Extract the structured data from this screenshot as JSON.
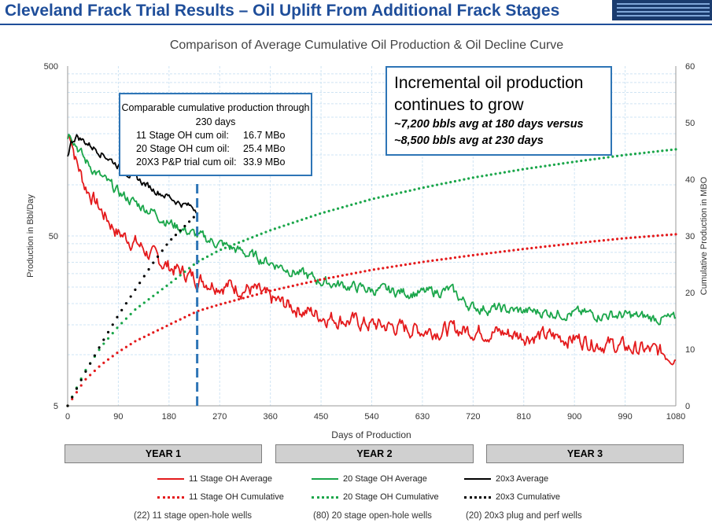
{
  "slide": {
    "title": "Cleveland Frack Trial Results – Oil Uplift From Additional Frack Stages"
  },
  "callout_left": {
    "header": "Comparable cumulative production through 230 days",
    "rows": [
      {
        "label": "11 Stage OH cum oil:",
        "value": "16.7 MBo"
      },
      {
        "label": "20 Stage OH cum oil:",
        "value": "25.4 MBo"
      },
      {
        "label": "20X3 P&P trial cum oil:",
        "value": "33.9 MBo"
      }
    ]
  },
  "callout_right": {
    "line1": "Incremental oil production",
    "line2": "continues to grow",
    "line3": "~7,200 bbls avg at 180 days versus",
    "line4": "~8,500 bbls avg at 230 days"
  },
  "years": [
    "YEAR 1",
    "YEAR 2",
    "YEAR 3"
  ],
  "legend": [
    {
      "label": "11 Stage OH Average",
      "color": "#e41a1c",
      "style": "solid"
    },
    {
      "label": "20 Stage OH Average",
      "color": "#1aa64a",
      "style": "solid"
    },
    {
      "label": "20x3 Average",
      "color": "#000000",
      "style": "solid"
    },
    {
      "label": "11 Stage OH Cumulative",
      "color": "#e41a1c",
      "style": "dotted"
    },
    {
      "label": "20 Stage OH Cumulative",
      "color": "#1aa64a",
      "style": "dotted"
    },
    {
      "label": "20x3 Cumulative",
      "color": "#000000",
      "style": "dotted"
    }
  ],
  "footer": [
    "(22) 11 stage open-hole wells",
    "(80) 20 stage open-hole wells",
    "(20) 20x3 plug and perf wells"
  ],
  "chart_data": {
    "type": "line",
    "title": "Comparison of Average Cumulative Oil Production & Oil Decline Curve",
    "xlabel": "Days of Production",
    "ylabel": "Production in Bbl/Day",
    "y2label": "Cumulative Production in MBO",
    "x_ticks": [
      "0",
      "90",
      "180",
      "270",
      "360",
      "450",
      "540",
      "630",
      "720",
      "810",
      "900",
      "990",
      "1080"
    ],
    "xlim": [
      0,
      1080
    ],
    "ylim": [
      5,
      500
    ],
    "y_scale": "log",
    "y_ticks": [
      "5",
      "50",
      "500"
    ],
    "y2lim": [
      0,
      60
    ],
    "y2_ticks": [
      "0",
      "10",
      "20",
      "30",
      "40",
      "50",
      "60"
    ],
    "grid": true,
    "marker_line": {
      "x": 230,
      "color": "#2e75b6",
      "style": "dashed"
    },
    "series": [
      {
        "name": "11 Stage OH Average",
        "axis": "left",
        "color": "#e41a1c",
        "style": "solid",
        "noise": 0.18,
        "x": [
          0,
          5,
          15,
          30,
          60,
          90,
          120,
          150,
          180,
          230,
          270,
          330,
          360,
          450,
          540,
          630,
          720,
          810,
          900,
          990,
          1080
        ],
        "y": [
          190,
          200,
          140,
          100,
          70,
          52,
          46,
          38,
          33,
          28,
          26,
          24,
          21,
          17,
          15,
          14,
          14,
          13,
          12.5,
          11,
          10
        ]
      },
      {
        "name": "20 Stage OH Average",
        "axis": "left",
        "color": "#1aa64a",
        "style": "solid",
        "noise": 0.12,
        "x": [
          0,
          5,
          15,
          30,
          60,
          90,
          120,
          150,
          180,
          230,
          270,
          330,
          360,
          450,
          540,
          630,
          680,
          700,
          720,
          810,
          900,
          990,
          1080
        ],
        "y": [
          195,
          205,
          175,
          140,
          110,
          90,
          78,
          70,
          60,
          50,
          45,
          38,
          35,
          27,
          24,
          23,
          24,
          21,
          19,
          18,
          17.5,
          17,
          16
        ]
      },
      {
        "name": "20x3 Average",
        "axis": "left",
        "color": "#000000",
        "style": "solid",
        "noise": 0.08,
        "x": [
          0,
          5,
          15,
          30,
          60,
          90,
          120,
          150,
          180,
          200,
          230
        ],
        "y": [
          150,
          175,
          195,
          180,
          155,
          130,
          110,
          95,
          85,
          78,
          72
        ]
      },
      {
        "name": "11 Stage OH Cumulative",
        "axis": "right",
        "color": "#e41a1c",
        "style": "dotted",
        "x": [
          0,
          30,
          60,
          90,
          120,
          180,
          230,
          270,
          360,
          450,
          540,
          630,
          720,
          810,
          900,
          990,
          1080
        ],
        "y": [
          0,
          4.5,
          7.3,
          9.5,
          11.4,
          14.3,
          16.7,
          17.9,
          20.3,
          22.3,
          24.0,
          25.4,
          26.6,
          27.7,
          28.7,
          29.6,
          30.3
        ]
      },
      {
        "name": "20 Stage OH Cumulative",
        "axis": "right",
        "color": "#1aa64a",
        "style": "dotted",
        "x": [
          0,
          30,
          60,
          90,
          120,
          180,
          230,
          270,
          360,
          450,
          540,
          630,
          720,
          810,
          900,
          990,
          1080
        ],
        "y": [
          0,
          6,
          10.5,
          14,
          17,
          21.5,
          25.4,
          27.5,
          31,
          34,
          36.5,
          38.5,
          40.3,
          41.8,
          43.1,
          44.3,
          45.3
        ]
      },
      {
        "name": "20x3 Cumulative",
        "axis": "right",
        "color": "#000000",
        "style": "dotted",
        "x": [
          0,
          30,
          60,
          90,
          120,
          150,
          180,
          230
        ],
        "y": [
          0,
          5.7,
          11,
          16,
          20.5,
          25,
          29,
          33.9
        ]
      }
    ]
  }
}
